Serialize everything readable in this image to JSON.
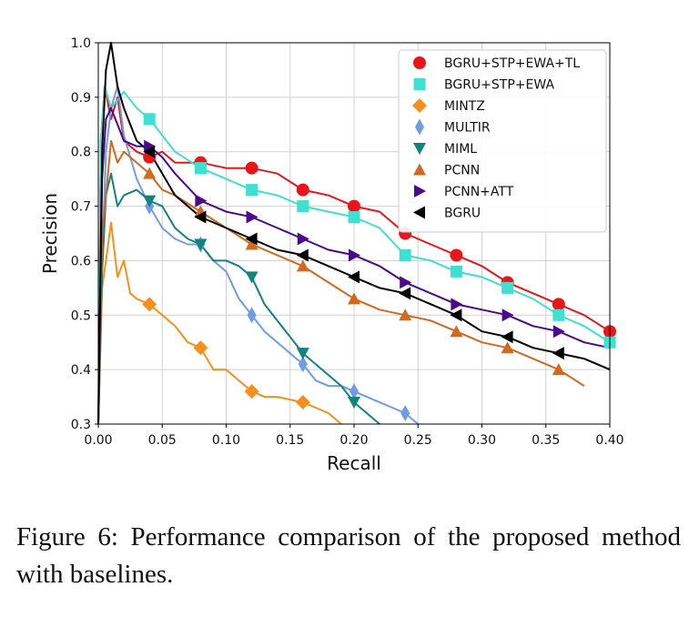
{
  "caption": "Figure 6:  Performance comparison of the proposed method with baselines.",
  "chart_data": {
    "type": "line",
    "title": "",
    "xlabel": "Recall",
    "ylabel": "Precision",
    "xlim": [
      0.0,
      0.4
    ],
    "ylim": [
      0.3,
      1.0
    ],
    "xticks": [
      "0.00",
      "0.05",
      "0.10",
      "0.15",
      "0.20",
      "0.25",
      "0.30",
      "0.35",
      "0.40"
    ],
    "yticks": [
      "0.3",
      "0.4",
      "0.5",
      "0.6",
      "0.7",
      "0.8",
      "0.9",
      "1.0"
    ],
    "grid": true,
    "legend_position": "top-right",
    "series": [
      {
        "name": "BGRU+STP+EWA+TL",
        "color": "#e8161b",
        "marker": "circle",
        "points": [
          [
            0,
            0.3
          ],
          [
            0.002,
            0.82
          ],
          [
            0.005,
            0.92
          ],
          [
            0.01,
            0.86
          ],
          [
            0.015,
            0.9
          ],
          [
            0.02,
            0.82
          ],
          [
            0.03,
            0.8
          ],
          [
            0.04,
            0.79
          ],
          [
            0.05,
            0.8
          ],
          [
            0.06,
            0.78
          ],
          [
            0.08,
            0.78
          ],
          [
            0.1,
            0.77
          ],
          [
            0.12,
            0.77
          ],
          [
            0.14,
            0.76
          ],
          [
            0.16,
            0.73
          ],
          [
            0.18,
            0.72
          ],
          [
            0.2,
            0.7
          ],
          [
            0.22,
            0.69
          ],
          [
            0.24,
            0.65
          ],
          [
            0.26,
            0.63
          ],
          [
            0.28,
            0.61
          ],
          [
            0.3,
            0.59
          ],
          [
            0.32,
            0.56
          ],
          [
            0.34,
            0.54
          ],
          [
            0.36,
            0.52
          ],
          [
            0.38,
            0.5
          ],
          [
            0.4,
            0.47
          ]
        ],
        "marker_x": [
          0.04,
          0.08,
          0.12,
          0.16,
          0.2,
          0.24,
          0.28,
          0.32,
          0.36,
          0.4
        ]
      },
      {
        "name": "BGRU+STP+EWA",
        "color": "#40e0d0",
        "marker": "square",
        "points": [
          [
            0,
            0.3
          ],
          [
            0.002,
            0.82
          ],
          [
            0.005,
            0.92
          ],
          [
            0.01,
            0.88
          ],
          [
            0.02,
            0.91
          ],
          [
            0.03,
            0.88
          ],
          [
            0.04,
            0.86
          ],
          [
            0.05,
            0.83
          ],
          [
            0.06,
            0.8
          ],
          [
            0.08,
            0.77
          ],
          [
            0.1,
            0.75
          ],
          [
            0.12,
            0.73
          ],
          [
            0.14,
            0.72
          ],
          [
            0.16,
            0.7
          ],
          [
            0.18,
            0.69
          ],
          [
            0.2,
            0.68
          ],
          [
            0.22,
            0.66
          ],
          [
            0.24,
            0.61
          ],
          [
            0.26,
            0.6
          ],
          [
            0.28,
            0.58
          ],
          [
            0.3,
            0.57
          ],
          [
            0.32,
            0.55
          ],
          [
            0.34,
            0.53
          ],
          [
            0.36,
            0.5
          ],
          [
            0.38,
            0.48
          ],
          [
            0.4,
            0.45
          ]
        ],
        "marker_x": [
          0.04,
          0.08,
          0.12,
          0.16,
          0.2,
          0.24,
          0.28,
          0.32,
          0.36,
          0.4
        ]
      },
      {
        "name": "MINTZ",
        "color": "#f5901e",
        "marker": "diamond",
        "points": [
          [
            0,
            0.3
          ],
          [
            0.003,
            0.55
          ],
          [
            0.006,
            0.6
          ],
          [
            0.01,
            0.67
          ],
          [
            0.015,
            0.57
          ],
          [
            0.02,
            0.6
          ],
          [
            0.025,
            0.54
          ],
          [
            0.03,
            0.53
          ],
          [
            0.04,
            0.52
          ],
          [
            0.05,
            0.5
          ],
          [
            0.06,
            0.48
          ],
          [
            0.07,
            0.45
          ],
          [
            0.08,
            0.44
          ],
          [
            0.09,
            0.4
          ],
          [
            0.1,
            0.4
          ],
          [
            0.11,
            0.38
          ],
          [
            0.12,
            0.36
          ],
          [
            0.13,
            0.35
          ],
          [
            0.14,
            0.35
          ],
          [
            0.16,
            0.34
          ],
          [
            0.17,
            0.33
          ],
          [
            0.18,
            0.32
          ],
          [
            0.19,
            0.3
          ]
        ],
        "marker_x": [
          0.04,
          0.08,
          0.12,
          0.16
        ]
      },
      {
        "name": "MULTIR",
        "color": "#6f9ce6",
        "marker": "thin_diamond",
        "points": [
          [
            0,
            0.3
          ],
          [
            0.003,
            0.6
          ],
          [
            0.006,
            0.8
          ],
          [
            0.01,
            0.88
          ],
          [
            0.015,
            0.92
          ],
          [
            0.02,
            0.83
          ],
          [
            0.03,
            0.75
          ],
          [
            0.04,
            0.7
          ],
          [
            0.05,
            0.66
          ],
          [
            0.06,
            0.64
          ],
          [
            0.07,
            0.63
          ],
          [
            0.08,
            0.63
          ],
          [
            0.09,
            0.6
          ],
          [
            0.1,
            0.58
          ],
          [
            0.11,
            0.53
          ],
          [
            0.12,
            0.5
          ],
          [
            0.13,
            0.47
          ],
          [
            0.14,
            0.45
          ],
          [
            0.15,
            0.43
          ],
          [
            0.16,
            0.41
          ],
          [
            0.17,
            0.38
          ],
          [
            0.18,
            0.37
          ],
          [
            0.19,
            0.37
          ],
          [
            0.2,
            0.36
          ],
          [
            0.21,
            0.35
          ],
          [
            0.22,
            0.34
          ],
          [
            0.23,
            0.33
          ],
          [
            0.24,
            0.32
          ],
          [
            0.25,
            0.3
          ]
        ],
        "marker_x": [
          0.04,
          0.08,
          0.12,
          0.16,
          0.2,
          0.24
        ]
      },
      {
        "name": "MIML",
        "color": "#13837f",
        "marker": "triangle_down",
        "points": [
          [
            0,
            0.3
          ],
          [
            0.003,
            0.58
          ],
          [
            0.006,
            0.72
          ],
          [
            0.01,
            0.76
          ],
          [
            0.015,
            0.7
          ],
          [
            0.02,
            0.72
          ],
          [
            0.03,
            0.73
          ],
          [
            0.04,
            0.71
          ],
          [
            0.05,
            0.7
          ],
          [
            0.06,
            0.66
          ],
          [
            0.07,
            0.64
          ],
          [
            0.08,
            0.63
          ],
          [
            0.09,
            0.6
          ],
          [
            0.1,
            0.6
          ],
          [
            0.11,
            0.59
          ],
          [
            0.12,
            0.57
          ],
          [
            0.13,
            0.52
          ],
          [
            0.14,
            0.49
          ],
          [
            0.15,
            0.46
          ],
          [
            0.16,
            0.43
          ],
          [
            0.17,
            0.41
          ],
          [
            0.18,
            0.39
          ],
          [
            0.19,
            0.37
          ],
          [
            0.2,
            0.34
          ],
          [
            0.21,
            0.32
          ],
          [
            0.22,
            0.3
          ]
        ],
        "marker_x": [
          0.04,
          0.08,
          0.12,
          0.16,
          0.2
        ]
      },
      {
        "name": "PCNN",
        "color": "#d2691e",
        "marker": "triangle_up",
        "points": [
          [
            0,
            0.3
          ],
          [
            0.003,
            0.65
          ],
          [
            0.006,
            0.72
          ],
          [
            0.01,
            0.82
          ],
          [
            0.015,
            0.78
          ],
          [
            0.02,
            0.8
          ],
          [
            0.03,
            0.78
          ],
          [
            0.04,
            0.76
          ],
          [
            0.05,
            0.73
          ],
          [
            0.06,
            0.72
          ],
          [
            0.08,
            0.69
          ],
          [
            0.1,
            0.66
          ],
          [
            0.12,
            0.63
          ],
          [
            0.14,
            0.61
          ],
          [
            0.16,
            0.59
          ],
          [
            0.18,
            0.56
          ],
          [
            0.2,
            0.53
          ],
          [
            0.22,
            0.51
          ],
          [
            0.24,
            0.5
          ],
          [
            0.26,
            0.49
          ],
          [
            0.28,
            0.47
          ],
          [
            0.3,
            0.45
          ],
          [
            0.32,
            0.44
          ],
          [
            0.34,
            0.42
          ],
          [
            0.36,
            0.4
          ],
          [
            0.38,
            0.37
          ]
        ],
        "marker_x": [
          0.04,
          0.08,
          0.12,
          0.16,
          0.2,
          0.24,
          0.28,
          0.32,
          0.36
        ]
      },
      {
        "name": "PCNN+ATT",
        "color": "#4b0a8c",
        "marker": "triangle_right",
        "points": [
          [
            0,
            0.3
          ],
          [
            0.003,
            0.75
          ],
          [
            0.006,
            0.86
          ],
          [
            0.01,
            0.88
          ],
          [
            0.015,
            0.85
          ],
          [
            0.02,
            0.82
          ],
          [
            0.03,
            0.81
          ],
          [
            0.04,
            0.81
          ],
          [
            0.05,
            0.79
          ],
          [
            0.06,
            0.76
          ],
          [
            0.08,
            0.71
          ],
          [
            0.1,
            0.69
          ],
          [
            0.12,
            0.68
          ],
          [
            0.14,
            0.66
          ],
          [
            0.16,
            0.64
          ],
          [
            0.18,
            0.62
          ],
          [
            0.2,
            0.61
          ],
          [
            0.22,
            0.59
          ],
          [
            0.24,
            0.56
          ],
          [
            0.26,
            0.54
          ],
          [
            0.28,
            0.52
          ],
          [
            0.3,
            0.51
          ],
          [
            0.32,
            0.5
          ],
          [
            0.34,
            0.48
          ],
          [
            0.36,
            0.47
          ],
          [
            0.38,
            0.45
          ],
          [
            0.4,
            0.44
          ]
        ],
        "marker_x": [
          0.04,
          0.08,
          0.12,
          0.16,
          0.2,
          0.24,
          0.28,
          0.32,
          0.36
        ]
      },
      {
        "name": "BGRU",
        "color": "#000000",
        "marker": "triangle_left",
        "points": [
          [
            0,
            0.3
          ],
          [
            0.003,
            0.8
          ],
          [
            0.006,
            0.95
          ],
          [
            0.01,
            1.0
          ],
          [
            0.015,
            0.92
          ],
          [
            0.02,
            0.88
          ],
          [
            0.03,
            0.82
          ],
          [
            0.04,
            0.8
          ],
          [
            0.05,
            0.76
          ],
          [
            0.06,
            0.72
          ],
          [
            0.08,
            0.68
          ],
          [
            0.1,
            0.66
          ],
          [
            0.12,
            0.64
          ],
          [
            0.14,
            0.62
          ],
          [
            0.16,
            0.61
          ],
          [
            0.18,
            0.59
          ],
          [
            0.2,
            0.57
          ],
          [
            0.22,
            0.55
          ],
          [
            0.24,
            0.54
          ],
          [
            0.26,
            0.52
          ],
          [
            0.28,
            0.5
          ],
          [
            0.3,
            0.47
          ],
          [
            0.32,
            0.46
          ],
          [
            0.34,
            0.44
          ],
          [
            0.36,
            0.43
          ],
          [
            0.38,
            0.42
          ],
          [
            0.4,
            0.4
          ]
        ],
        "marker_x": [
          0.04,
          0.08,
          0.12,
          0.16,
          0.2,
          0.24,
          0.28,
          0.32,
          0.36
        ]
      }
    ]
  }
}
